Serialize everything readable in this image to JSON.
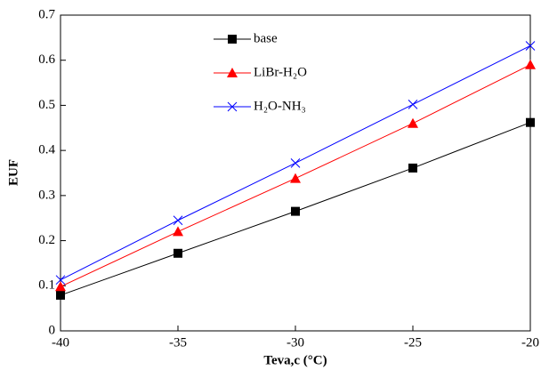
{
  "chart_data": {
    "type": "line",
    "x_label": "Teva,c (°C)",
    "y_label": "EUF",
    "x": [
      -40,
      -35,
      -30,
      -25,
      -20
    ],
    "series": [
      {
        "name": "base",
        "color": "#000000",
        "marker": "square",
        "values": [
          0.079,
          0.172,
          0.265,
          0.361,
          0.462
        ]
      },
      {
        "name": "LiBr-H₂O",
        "color": "#ff0000",
        "marker": "triangle",
        "values": [
          0.098,
          0.22,
          0.338,
          0.46,
          0.59
        ]
      },
      {
        "name": "H₂O-NH₃",
        "color": "#0000ff",
        "marker": "bowtie",
        "values": [
          0.113,
          0.245,
          0.372,
          0.502,
          0.632
        ]
      }
    ],
    "xlim": [
      -40,
      -20
    ],
    "xticks": [
      -40,
      -35,
      -30,
      -25,
      -20
    ],
    "ylim": [
      0,
      0.7
    ],
    "yticks": [
      0,
      0.1,
      0.2,
      0.3,
      0.4,
      0.5,
      0.6,
      0.7
    ],
    "legend": "upper-left"
  }
}
